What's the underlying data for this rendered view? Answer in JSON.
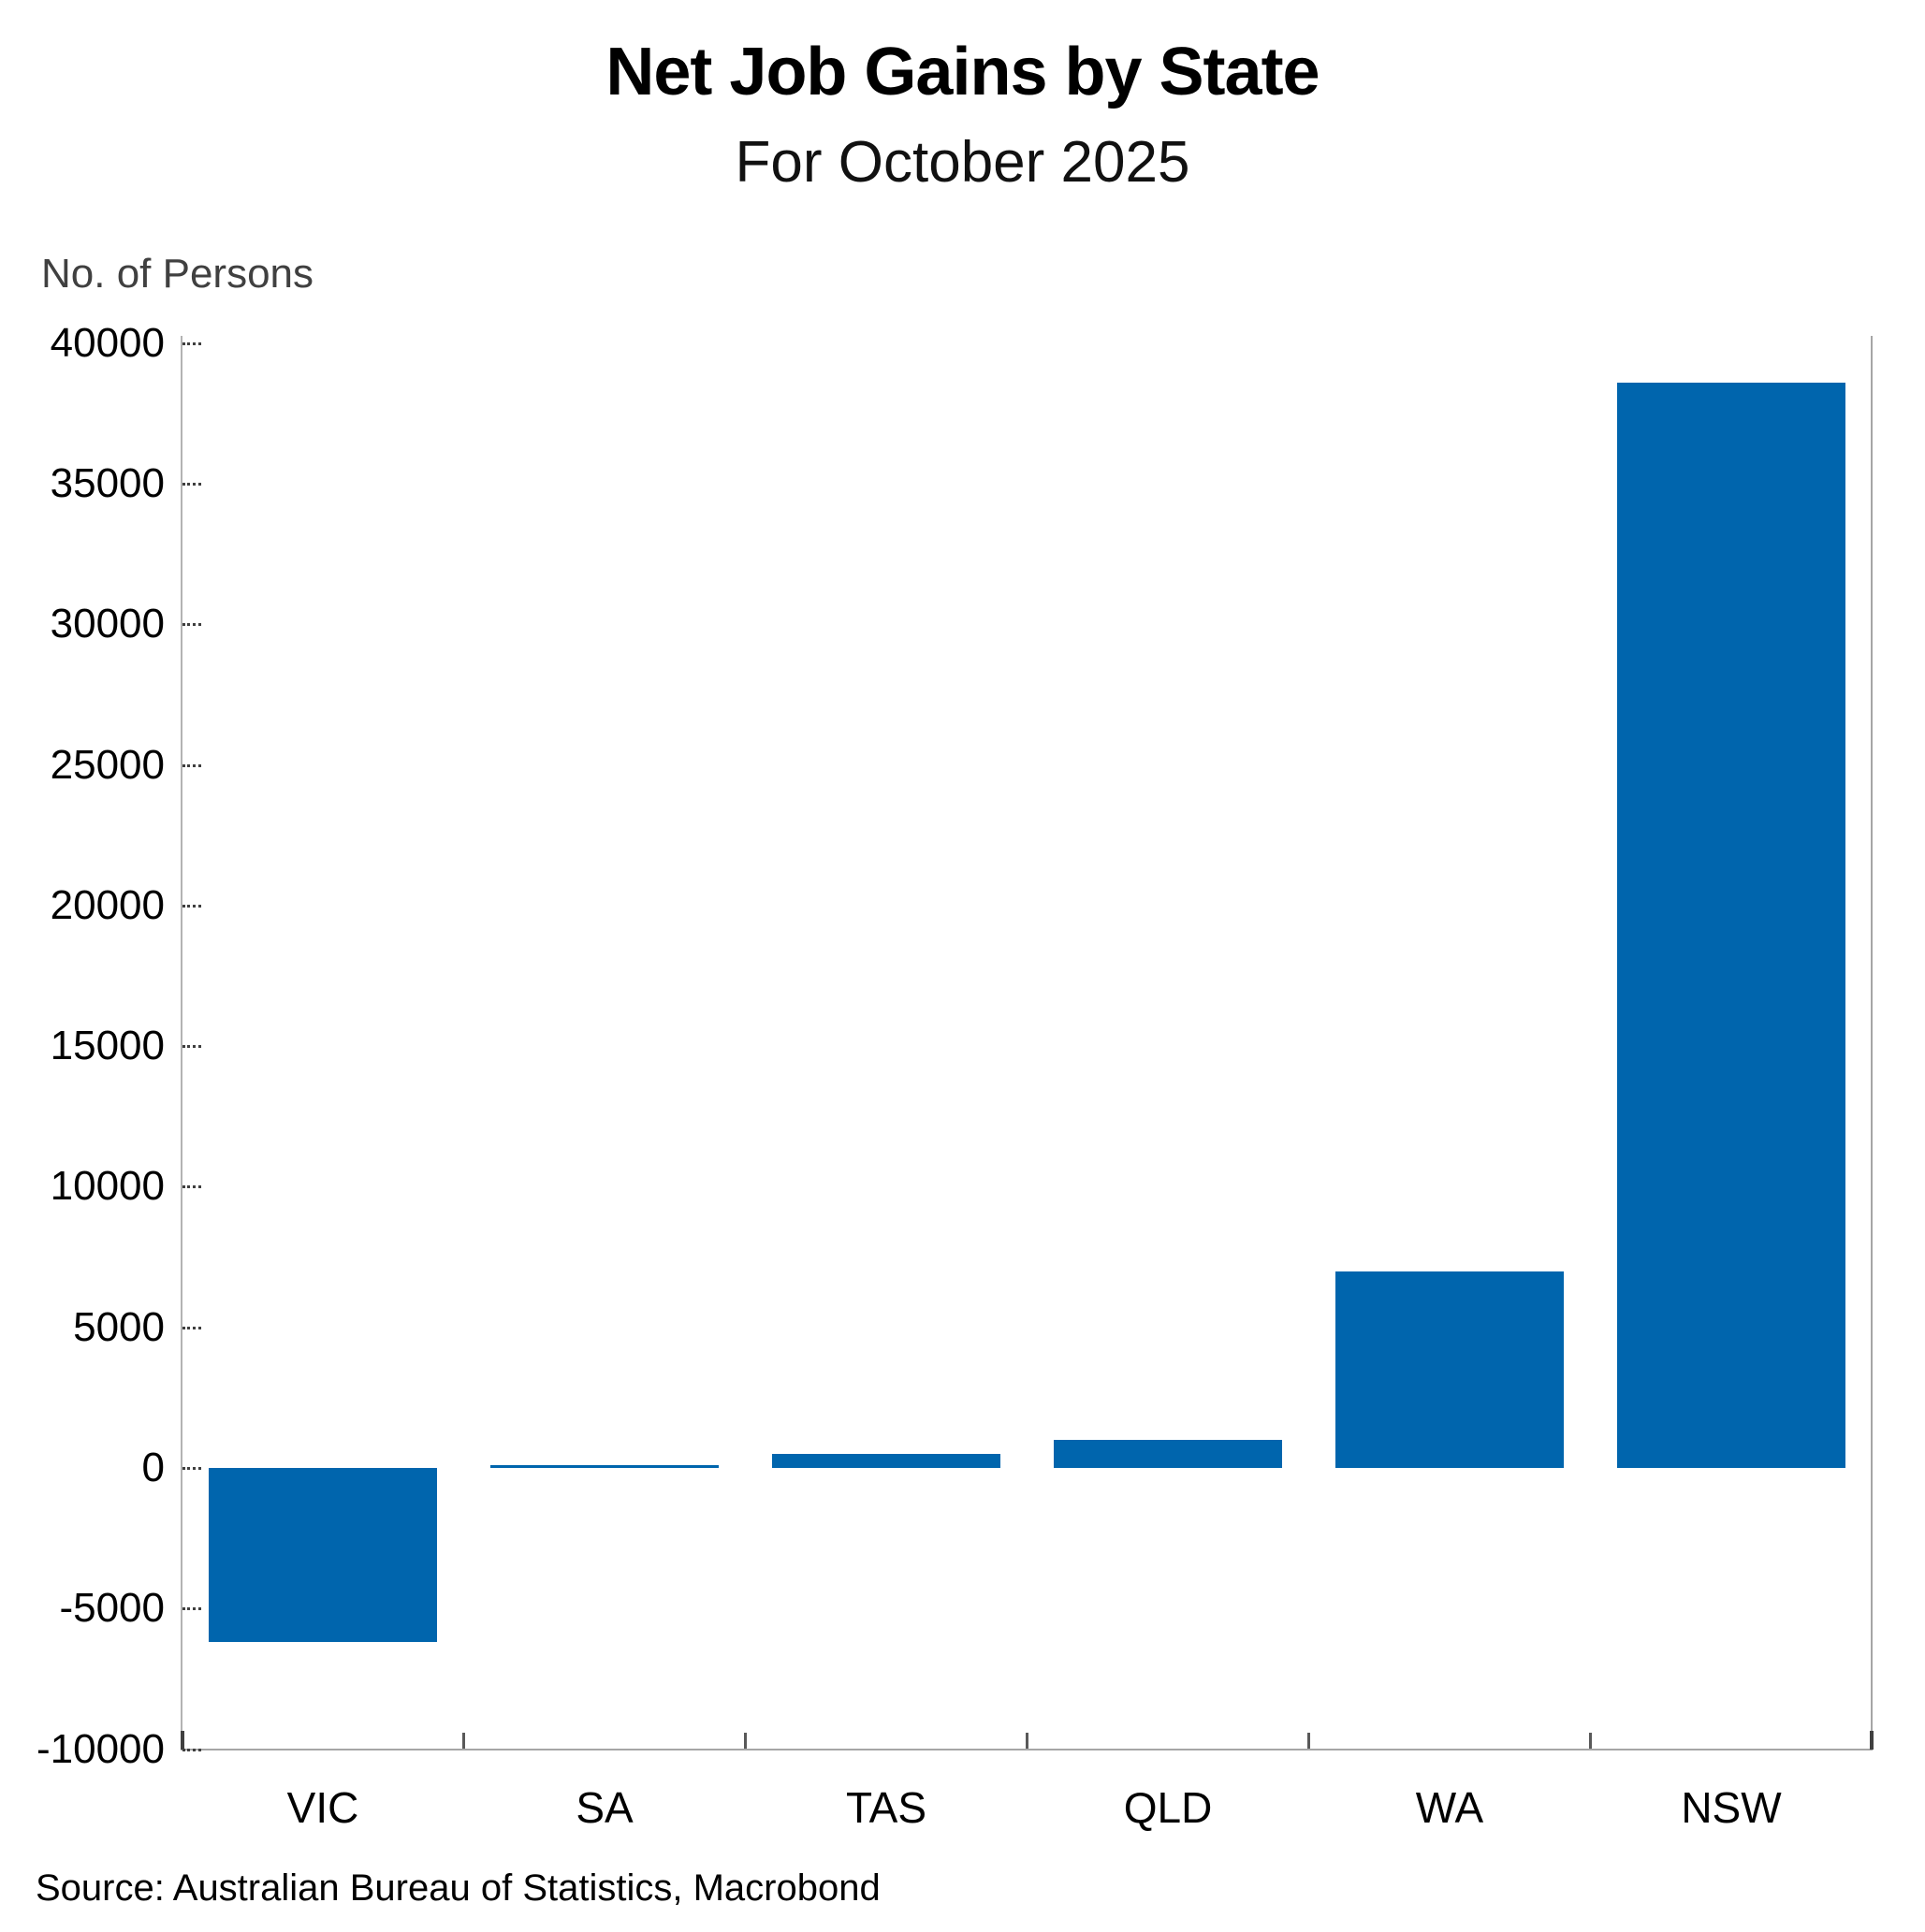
{
  "header": {
    "title": "Net Job Gains by State",
    "subtitle": "For October 2025"
  },
  "chart_data": {
    "type": "bar",
    "title": "Net Job Gains by State",
    "subtitle": "For October 2025",
    "ylabel": "No. of Persons",
    "categories": [
      "VIC",
      "SA",
      "TAS",
      "QLD",
      "WA",
      "NSW"
    ],
    "values": [
      -6200,
      100,
      500,
      1000,
      7000,
      38600
    ],
    "ylim": [
      -10000,
      40000
    ],
    "ytick_step": 5000,
    "grid": false,
    "legend_position": "none",
    "bar_color": "#0065ad",
    "axis_color": "#a6a6a6",
    "tick_color": "#3f3f3f",
    "ylabel_color": "#404040"
  },
  "footer": {
    "source": "Source: Australian Bureau of Statistics, Macrobond"
  }
}
